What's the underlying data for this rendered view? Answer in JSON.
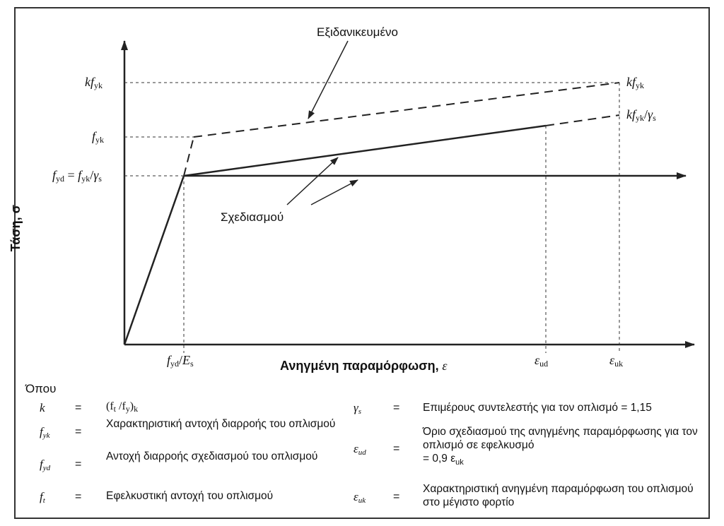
{
  "curve_labels": {
    "idealized": "Εξιδανικευμένο",
    "design": "Σχεδιασμού"
  },
  "axes": {
    "x_title": "Ανηγμένη παραμόρφωση,",
    "x_symbol": "ε",
    "y_title_fragment": "Τάση, σ"
  },
  "y_ticks": {
    "kfyk": {
      "k": "k",
      "f": "f",
      "sub": "yk"
    },
    "fyk": {
      "f": "f",
      "sub": "yk"
    },
    "fyd": {
      "f1": "f",
      "sub1": "yd",
      "eq": "=",
      "f2": "f",
      "sub2": "yk",
      "slash": "/",
      "g": "γ",
      "sub3": "s"
    }
  },
  "x_ticks": {
    "fyd_es": {
      "f": "f",
      "sub1": "yd",
      "slash": "/",
      "E": "E",
      "sub2": "s"
    },
    "eud": {
      "e": "ε",
      "sub": "ud"
    },
    "euk": {
      "e": "ε",
      "sub": "uk"
    }
  },
  "right_labels": {
    "kfyk": {
      "k": "k",
      "f": "f",
      "sub": "yk"
    },
    "kfyk_gs": {
      "k": "k",
      "f": "f",
      "sub1": "yk",
      "slash": "/",
      "g": "γ",
      "sub2": "s"
    }
  },
  "legend": {
    "title": "Όπου",
    "equals": "=",
    "rows_left": [
      {
        "sym": "k",
        "sub": "",
        "def_html_parts": [
          "(f",
          "t",
          " /f",
          "y",
          ")",
          "k"
        ]
      },
      {
        "sym": "f",
        "sub": "yk",
        "def": "Χαρακτηριστική αντοχή διαρροής του οπλισμού"
      },
      {
        "sym": "f",
        "sub": "yd",
        "def": "Αντοχή διαρροής σχεδιασμού του οπλισμού"
      },
      {
        "sym": "f",
        "sub": "t",
        "def": "Εφελκυστική αντοχή του οπλισμού"
      }
    ],
    "rows_right": [
      {
        "sym": "γ",
        "sub": "s",
        "def": "Επιμέρους συντελεστής για τον οπλισμό = 1,15"
      },
      {
        "sym": "ε",
        "sub": "ud",
        "def": "Όριο σχεδιασμού της ανηγμένης παραμόρφωσης για τον οπλισμό σε εφελκυσμό",
        "def_extra": "= 0,9 ε",
        "def_extra_sub": "uk"
      },
      {
        "sym": "ε",
        "sub": "uk",
        "def": "Χαρακτηριστική ανηγμένη παραμόρφωση του οπλισμού στο μέγιστο φορτίο"
      }
    ]
  }
}
